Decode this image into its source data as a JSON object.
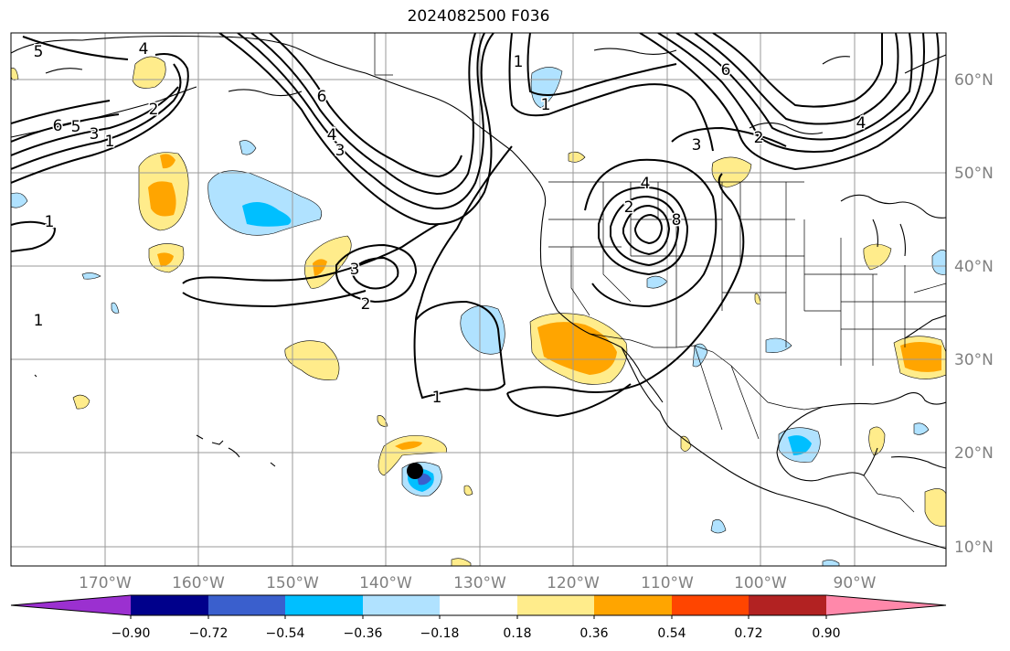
{
  "title": "2024082500 F036",
  "map": {
    "lon_ticks": [
      "170°W",
      "160°W",
      "150°W",
      "140°W",
      "130°W",
      "120°W",
      "110°W",
      "100°W",
      "90°W"
    ],
    "lat_ticks": [
      "60°N",
      "50°N",
      "40°N",
      "30°N",
      "20°N",
      "10°N"
    ],
    "grid": true
  },
  "contour_labels": [
    "5",
    "4",
    "6",
    "5",
    "3",
    "1",
    "2",
    "1",
    "1",
    "6",
    "4",
    "3",
    "3",
    "2",
    "1",
    "1",
    "6",
    "3",
    "4",
    "2",
    "8",
    "4",
    "2",
    "1"
  ],
  "marker": {
    "label": "",
    "color": "#000000"
  },
  "colorbar": {
    "ticks": [
      "−0.90",
      "−0.72",
      "−0.54",
      "−0.36",
      "−0.18",
      "0.18",
      "0.36",
      "0.54",
      "0.72",
      "0.90"
    ],
    "colors": [
      "#9b30d0",
      "#00008b",
      "#3a5fcd",
      "#00bfff",
      "#b0e2ff",
      "#ffffff",
      "#ffec8b",
      "#ffa500",
      "#ff4500",
      "#b22222",
      "#ff88aa"
    ]
  }
}
